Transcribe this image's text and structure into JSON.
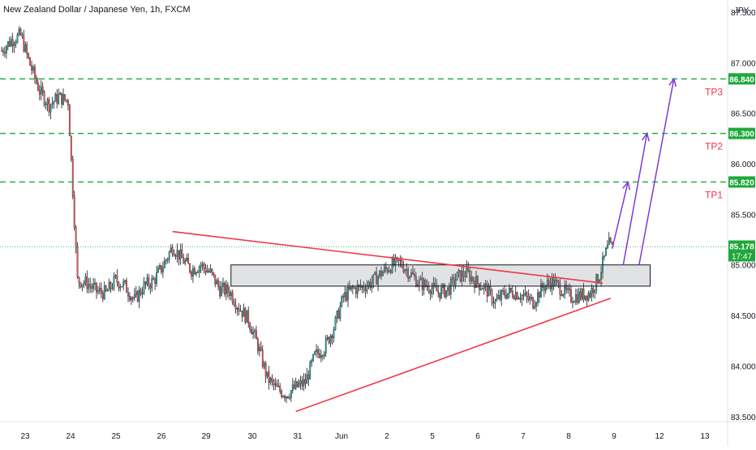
{
  "header": {
    "title": "New Zealand Dollar / Japanese Yen, 1h, FXCM"
  },
  "chart_data": {
    "type": "candlestick",
    "title": "New Zealand Dollar / Japanese Yen, 1h, FXCM",
    "currency": "JPY",
    "ylim": [
      83.45,
      87.62
    ],
    "y_ticks": [
      "87.500",
      "87.000",
      "86.500",
      "86.000",
      "85.500",
      "85.000",
      "84.500",
      "84.000",
      "83.500"
    ],
    "x_labels": [
      "23",
      "24",
      "25",
      "26",
      "29",
      "30",
      "31",
      "Jun",
      "2",
      "5",
      "6",
      "7",
      "8",
      "9",
      "12",
      "13"
    ],
    "candle_colors": {
      "up": "#26a69a",
      "down": "#ef5350",
      "wick": "#131722"
    },
    "price_path": [
      [
        0,
        87.12
      ],
      [
        6,
        87.22
      ],
      [
        12,
        87.27
      ],
      [
        18,
        86.98
      ],
      [
        24,
        86.72
      ],
      [
        30,
        86.58
      ],
      [
        36,
        86.66
      ],
      [
        42,
        86.62
      ],
      [
        48,
        84.85
      ],
      [
        54,
        84.82
      ],
      [
        60,
        84.74
      ],
      [
        66,
        84.72
      ],
      [
        72,
        84.85
      ],
      [
        78,
        84.79
      ],
      [
        84,
        84.65
      ],
      [
        90,
        84.79
      ],
      [
        96,
        84.84
      ],
      [
        102,
        84.99
      ],
      [
        108,
        85.18
      ],
      [
        114,
        85.06
      ],
      [
        120,
        84.95
      ],
      [
        126,
        85.0
      ],
      [
        132,
        84.92
      ],
      [
        138,
        84.76
      ],
      [
        144,
        84.74
      ],
      [
        150,
        84.58
      ],
      [
        156,
        84.46
      ],
      [
        162,
        84.2
      ],
      [
        168,
        83.88
      ],
      [
        174,
        83.77
      ],
      [
        180,
        83.72
      ],
      [
        186,
        83.79
      ],
      [
        192,
        83.84
      ],
      [
        198,
        84.1
      ],
      [
        204,
        84.18
      ],
      [
        210,
        84.38
      ],
      [
        216,
        84.68
      ],
      [
        222,
        84.76
      ],
      [
        228,
        84.78
      ],
      [
        234,
        84.83
      ],
      [
        240,
        84.92
      ],
      [
        246,
        84.99
      ],
      [
        252,
        85.02
      ],
      [
        258,
        84.92
      ],
      [
        264,
        84.82
      ],
      [
        270,
        84.79
      ],
      [
        276,
        84.73
      ],
      [
        282,
        84.75
      ],
      [
        288,
        84.88
      ],
      [
        294,
        84.92
      ],
      [
        300,
        84.83
      ],
      [
        306,
        84.77
      ],
      [
        312,
        84.63
      ],
      [
        318,
        84.72
      ],
      [
        324,
        84.73
      ],
      [
        330,
        84.69
      ],
      [
        336,
        84.63
      ],
      [
        342,
        84.78
      ],
      [
        348,
        84.84
      ],
      [
        354,
        84.76
      ],
      [
        360,
        84.68
      ],
      [
        366,
        84.7
      ],
      [
        372,
        84.72
      ],
      [
        378,
        84.9
      ],
      [
        382,
        85.12
      ],
      [
        384,
        85.2
      ],
      [
        386,
        85.16
      ]
    ],
    "last_bar_index": 386,
    "zone": {
      "low": 84.79,
      "high": 85.0,
      "from_bar": 145,
      "to_bar": 410
    },
    "trendlines": [
      {
        "name": "resistance",
        "from": [
          108,
          85.33
        ],
        "to": [
          380,
          84.82
        ],
        "color": "#f23645"
      },
      {
        "name": "support",
        "from": [
          186,
          83.55
        ],
        "to": [
          385,
          84.67
        ],
        "color": "#f23645"
      }
    ],
    "arrows": [
      {
        "from": [
          386,
          85.16
        ],
        "to": [
          396,
          85.82
        ]
      },
      {
        "from": [
          393,
          85.0
        ],
        "to": [
          408,
          86.3
        ]
      },
      {
        "from": [
          403,
          85.0
        ],
        "to": [
          425,
          86.84
        ]
      }
    ],
    "arrow_color": "#7e3ad6",
    "targets": [
      {
        "label": "TP3",
        "price": 86.84,
        "price_label": "86.840"
      },
      {
        "label": "TP2",
        "price": 86.3,
        "price_label": "86.300"
      },
      {
        "label": "TP1",
        "price": 85.82,
        "price_label": "85.820"
      }
    ],
    "target_color": "#1fa83a",
    "tp_label_color": "#f23645",
    "current_price": {
      "price": 85.178,
      "label": "85.178",
      "countdown": "17:47",
      "color": "#1fa83a"
    }
  }
}
